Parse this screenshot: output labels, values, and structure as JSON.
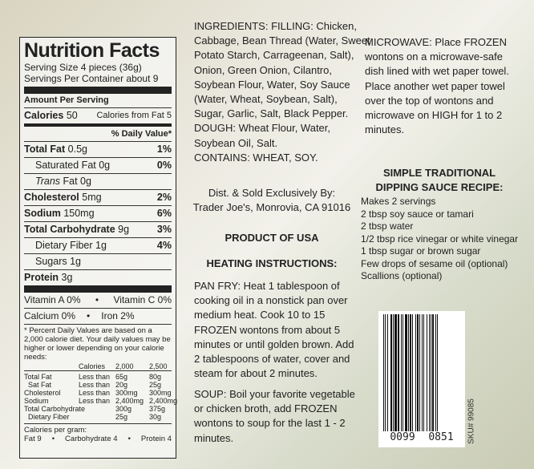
{
  "nutrition": {
    "title": "Nutrition Facts",
    "serving_size": "Serving Size 4 pieces (36g)",
    "servings_per_container": "Servings Per Container about 9",
    "amount_per_serving": "Amount Per Serving",
    "calories_label": "Calories",
    "calories": "50",
    "calories_from_fat": "Calories from Fat 5",
    "daily_value_header": "% Daily Value*",
    "rows": [
      {
        "label": "Total Fat",
        "amount": "0.5g",
        "dv": "1%"
      },
      {
        "label": "Saturated Fat",
        "amount": "0g",
        "dv": "0%"
      },
      {
        "label": "Trans",
        "amount": "Fat 0g",
        "dv": ""
      },
      {
        "label": "Cholesterol",
        "amount": "5mg",
        "dv": "2%"
      },
      {
        "label": "Sodium",
        "amount": "150mg",
        "dv": "6%"
      },
      {
        "label": "Total Carbohydrate",
        "amount": "9g",
        "dv": "3%"
      },
      {
        "label": "Dietary Fiber",
        "amount": "1g",
        "dv": "4%"
      },
      {
        "label": "Sugars",
        "amount": "1g",
        "dv": ""
      },
      {
        "label": "Protein",
        "amount": "3g",
        "dv": ""
      }
    ],
    "vitamin_a": "Vitamin A 0%",
    "vitamin_c": "Vitamin C 0%",
    "calcium": "Calcium 0%",
    "iron": "Iron 2%",
    "bullet": "•",
    "footnote": "* Percent Daily Values are based on a 2,000 calorie diet. Your daily values may be higher or lower depending on your calorie needs:",
    "table_header": [
      "",
      "Calories",
      "2,000",
      "2,500"
    ],
    "table": [
      [
        "Total Fat",
        "Less than",
        "65g",
        "80g"
      ],
      [
        "Sat Fat",
        "Less than",
        "20g",
        "25g"
      ],
      [
        "Cholesterol",
        "Less than",
        "300mg",
        "300mg"
      ],
      [
        "Sodium",
        "Less than",
        "2,400mg",
        "2,400mg"
      ],
      [
        "Total Carbohydrate",
        "",
        "300g",
        "375g"
      ],
      [
        "Dietary Fiber",
        "",
        "25g",
        "30g"
      ]
    ],
    "cal_per_gram": "Calories per gram:",
    "cal_fat": "Fat 9",
    "cal_carb": "Carbohydrate 4",
    "cal_protein": "Protein 4"
  },
  "middle": {
    "ingredients_lines": [
      "INGREDIENTS: FILLING: Chicken,",
      "Cabbage, Bean Thread (Water, Sweet",
      "Potato Starch, Carrageenan, Salt),",
      "Onion, Green Onion, Cilantro,",
      "Soybean Flour, Water, Soy Sauce",
      "(Water, Wheat, Soybean, Salt),",
      "Sugar, Garlic, Salt, Black Pepper.",
      "DOUGH: Wheat Flour, Water,",
      "Soybean Oil, Salt.",
      "CONTAINS: WHEAT, SOY."
    ],
    "dist": [
      "Dist. & Sold Exclusively By:",
      "Trader Joe's, Monrovia, CA 91016"
    ],
    "product": "PRODUCT OF USA",
    "heating": "HEATING INSTRUCTIONS:",
    "pan_fry": [
      "PAN FRY: Heat 1 tablespoon of",
      "cooking oil in a nonstick pan over",
      "medium heat. Cook 10 to 15",
      "FROZEN wontons from about 5",
      "minutes or until golden brown. Add",
      "2 tablespoons of water, cover and",
      "steam for about 2 minutes."
    ],
    "soup": [
      "SOUP: Boil your favorite vegetable",
      "or chicken broth, add FROZEN",
      "wontons to soup for the last 1 - 2",
      "minutes."
    ]
  },
  "right": {
    "microwave": [
      "MICROWAVE: Place FROZEN",
      "wontons on a microwave-safe",
      "dish lined with wet paper towel.",
      "Place another wet paper towel",
      "over the top of wontons and",
      "microwave on HIGH for 1 to 2",
      "minutes."
    ],
    "recipe_title": [
      "SIMPLE TRADITIONAL",
      "DIPPING SAUCE RECIPE:"
    ],
    "recipe": [
      "Makes 2 servings",
      "2 tbsp soy sauce or tamari",
      "2 tbsp water",
      "1/2 tbsp rice vinegar or white vinegar",
      "1 tbsp sugar or brown sugar",
      "Few drops of sesame oil (optional)",
      "Scallions (optional)"
    ],
    "barcode_digits": [
      "0099",
      "0851"
    ],
    "sku": "SKU# 99085"
  }
}
